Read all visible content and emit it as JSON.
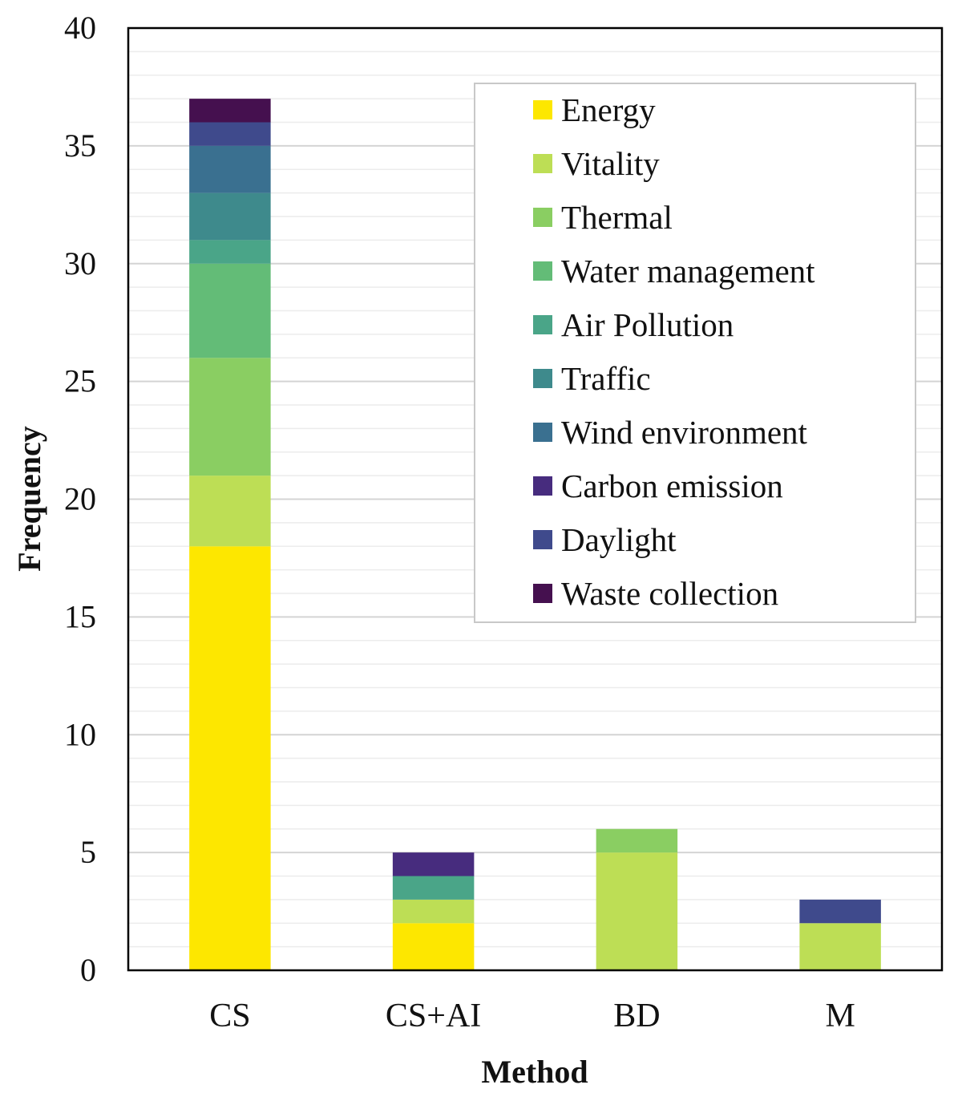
{
  "chart_data": {
    "type": "bar",
    "stacked": true,
    "title": "",
    "xlabel": "Method",
    "ylabel": "Frequency",
    "ylim": [
      0,
      40
    ],
    "yticks": [
      0,
      5,
      10,
      15,
      20,
      25,
      30,
      35,
      40
    ],
    "minor_gridlines": true,
    "legend_position": "top-right",
    "categories": [
      "CS",
      "CS+AI",
      "BD",
      "M"
    ],
    "series": [
      {
        "name": "Energy",
        "color": "#FDE700",
        "values": [
          18,
          2,
          0,
          0
        ]
      },
      {
        "name": "Vitality",
        "color": "#BDDE55",
        "values": [
          3,
          1,
          5,
          2
        ]
      },
      {
        "name": "Thermal",
        "color": "#8ACE62",
        "values": [
          5,
          0,
          1,
          0
        ]
      },
      {
        "name": "Water management",
        "color": "#63BC77",
        "values": [
          4,
          0,
          0,
          0
        ]
      },
      {
        "name": "Air Pollution",
        "color": "#4AA588",
        "values": [
          1,
          1,
          0,
          0
        ]
      },
      {
        "name": "Traffic",
        "color": "#3E8A8C",
        "values": [
          2,
          0,
          0,
          0
        ]
      },
      {
        "name": "Wind environment",
        "color": "#3A7090",
        "values": [
          2,
          0,
          0,
          0
        ]
      },
      {
        "name": "Carbon emission",
        "color": "#472C7E",
        "values": [
          0,
          1,
          0,
          0
        ]
      },
      {
        "name": "Daylight",
        "color": "#3F4A8C",
        "values": [
          1,
          0,
          0,
          1
        ]
      },
      {
        "name": "Waste collection",
        "color": "#45104F",
        "values": [
          1,
          0,
          0,
          0
        ]
      }
    ]
  }
}
